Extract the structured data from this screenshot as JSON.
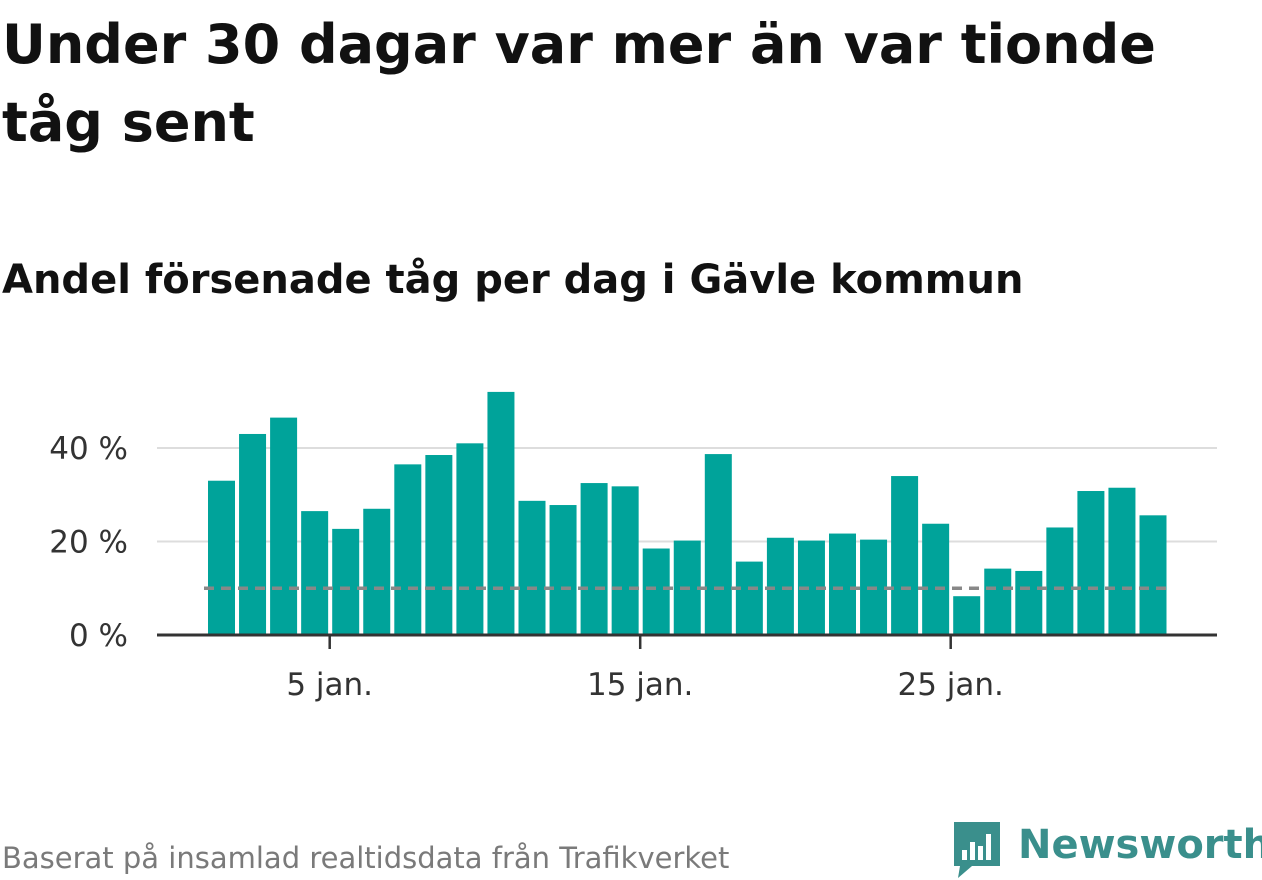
{
  "title": "Under 30 dagar var mer än var tionde tåg sent",
  "subtitle": "Andel försenade tåg per dag i Gävle kommun",
  "footer": {
    "source": "Baserat på insamlad realtidsdata från Trafikverket",
    "brand": "Newsworthy"
  },
  "colors": {
    "bar": "#00a39a",
    "reference_line": "#888888",
    "grid": "#dddddd",
    "axis": "#333333",
    "brand": "#3a8f8c"
  },
  "chart_data": {
    "type": "bar",
    "x_unit": "day of January",
    "days": [
      1,
      2,
      3,
      4,
      5,
      6,
      7,
      8,
      9,
      10,
      11,
      12,
      13,
      14,
      15,
      16,
      17,
      18,
      19,
      20,
      21,
      22,
      23,
      24,
      25,
      26,
      27,
      28,
      29,
      30,
      31
    ],
    "values": [
      33,
      43,
      46.5,
      26.5,
      22.7,
      27,
      36.5,
      38.5,
      41,
      52,
      28.7,
      27.8,
      32.5,
      31.8,
      18.5,
      20.2,
      38.7,
      15.7,
      20.8,
      20.2,
      21.7,
      20.4,
      34,
      23.8,
      8.3,
      14.2,
      13.7,
      23,
      30.8,
      31.5,
      25.6
    ],
    "reference_value": 10,
    "x_ticks": [
      {
        "day": 5,
        "label": "5 jan."
      },
      {
        "day": 15,
        "label": "15 jan."
      },
      {
        "day": 25,
        "label": "25 jan."
      }
    ],
    "y_ticks": [
      {
        "value": 0,
        "label": "0 %"
      },
      {
        "value": 20,
        "label": "20 %"
      },
      {
        "value": 40,
        "label": "40 %"
      }
    ],
    "ylim": [
      0,
      55
    ],
    "grid": true,
    "legend": "none"
  }
}
